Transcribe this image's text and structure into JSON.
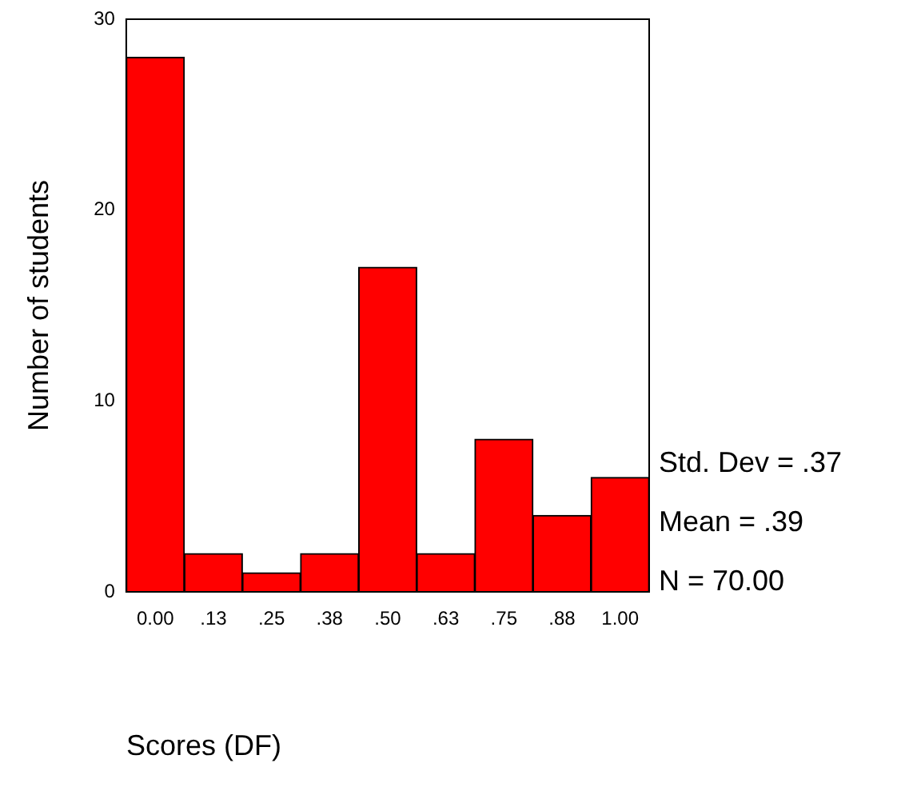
{
  "chart_data": {
    "type": "histogram",
    "xlabel": "Scores (DF)",
    "ylabel": "Number of students",
    "bins": [
      -0.0625,
      0.0625,
      0.1875,
      0.3125,
      0.4375,
      0.5625,
      0.6875,
      0.8125,
      0.9375,
      1.0625
    ],
    "values": [
      28,
      2,
      1,
      2,
      17,
      2,
      8,
      4,
      6
    ],
    "color": "#ff0000",
    "xlim": [
      -0.0625,
      1.0625
    ],
    "xticks": [
      {
        "value": 0,
        "label": "0.00"
      },
      {
        "value": 0.125,
        "label": ".13"
      },
      {
        "value": 0.25,
        "label": ".25"
      },
      {
        "value": 0.375,
        "label": ".38"
      },
      {
        "value": 0.5,
        "label": ".50"
      },
      {
        "value": 0.625,
        "label": ".63"
      },
      {
        "value": 0.75,
        "label": ".75"
      },
      {
        "value": 0.875,
        "label": ".88"
      },
      {
        "value": 1,
        "label": "1.00"
      }
    ],
    "ylim": [
      0,
      30
    ],
    "yticks": [
      0,
      10,
      20,
      30
    ],
    "grid": false,
    "annotations": [
      "Std. Dev = .37",
      "Mean = .39",
      "N = 70.00"
    ]
  }
}
